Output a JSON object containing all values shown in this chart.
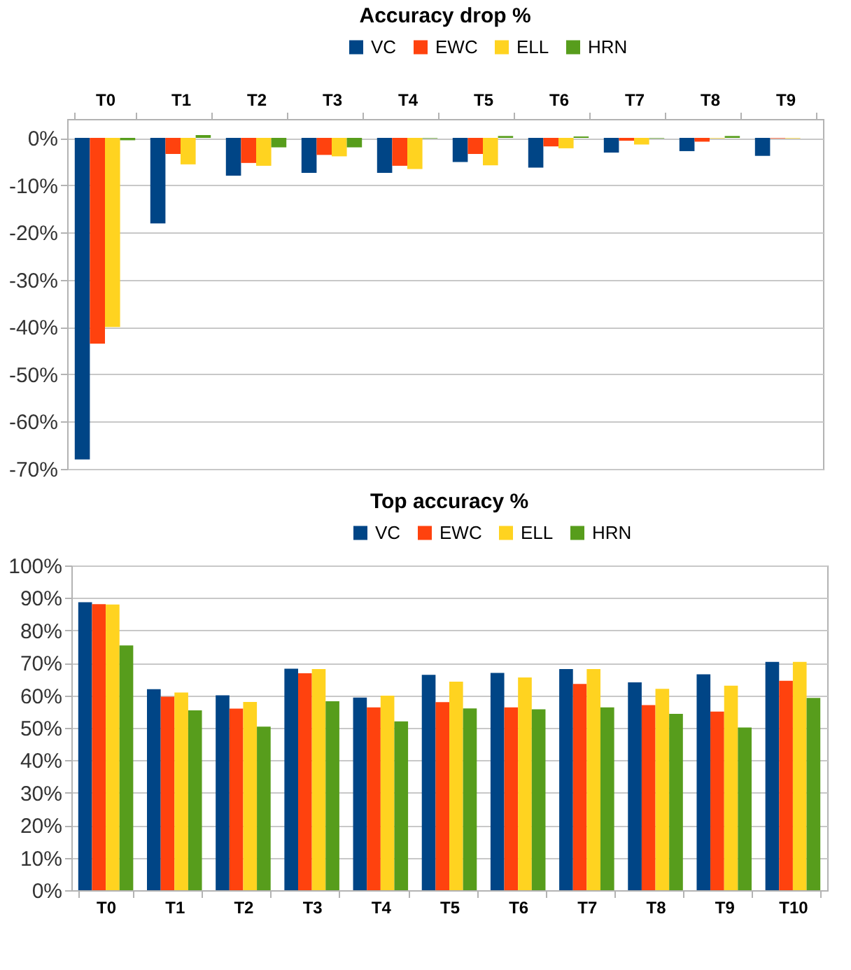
{
  "chart_data": [
    {
      "type": "bar",
      "title": "Accuracy drop %",
      "categories": [
        "T0",
        "T1",
        "T2",
        "T3",
        "T4",
        "T5",
        "T6",
        "T7",
        "T8",
        "T9"
      ],
      "series": [
        {
          "name": "VC",
          "color": "#004586",
          "values": [
            -68,
            -18.1,
            -8.0,
            -7.4,
            -7.4,
            -5.1,
            -6.3,
            -3.1,
            -2.8,
            -3.8
          ]
        },
        {
          "name": "EWC",
          "color": "#ff420e",
          "values": [
            -43.5,
            -3.4,
            -5.3,
            -3.6,
            -5.9,
            -3.4,
            -1.8,
            -0.6,
            -0.8,
            -0.1
          ]
        },
        {
          "name": "ELL",
          "color": "#ffd320",
          "values": [
            -40,
            -5.6,
            -5.9,
            -3.9,
            -6.6,
            -5.8,
            -2.2,
            -1.4,
            -0.1,
            -0.1
          ]
        },
        {
          "name": "HRN",
          "color": "#579d1c",
          "values": [
            -0.5,
            0.6,
            -2.0,
            -2.0,
            -0.1,
            0.4,
            0.3,
            -0.1,
            0.4,
            0
          ]
        }
      ],
      "ylim": [
        -70,
        4
      ],
      "yticks": [
        {
          "value": 0,
          "label": "0%"
        },
        {
          "value": -10,
          "label": "-10%"
        },
        {
          "value": -20,
          "label": "-20%"
        },
        {
          "value": -30,
          "label": "-30%"
        },
        {
          "value": -40,
          "label": "-40%"
        },
        {
          "value": -50,
          "label": "-50%"
        },
        {
          "value": -60,
          "label": "-60%"
        },
        {
          "value": -70,
          "label": "-70%"
        }
      ],
      "grid": "y",
      "legend": "top"
    },
    {
      "type": "bar",
      "title": "Top accuracy %",
      "categories": [
        "T0",
        "T1",
        "T2",
        "T3",
        "T4",
        "T5",
        "T6",
        "T7",
        "T8",
        "T9",
        "T10"
      ],
      "series": [
        {
          "name": "VC",
          "color": "#004586",
          "values": [
            88.7,
            61.9,
            60.0,
            68.2,
            59.3,
            66.3,
            66.9,
            68.1,
            64.0,
            66.5,
            70.3
          ]
        },
        {
          "name": "EWC",
          "color": "#ff420e",
          "values": [
            88.1,
            59.6,
            55.9,
            66.8,
            56.3,
            57.9,
            56.3,
            63.5,
            57.0,
            55.0,
            64.5
          ]
        },
        {
          "name": "ELL",
          "color": "#ffd320",
          "values": [
            88.0,
            60.9,
            58.0,
            68.1,
            59.9,
            64.2,
            65.5,
            68.1,
            62.0,
            63.0,
            70.3
          ]
        },
        {
          "name": "HRN",
          "color": "#579d1c",
          "values": [
            75.4,
            55.4,
            50.4,
            58.2,
            52.0,
            56.0,
            55.7,
            56.3,
            54.3,
            50.1,
            59.2
          ]
        }
      ],
      "ylim": [
        0,
        100
      ],
      "yticks": [
        {
          "value": 0,
          "label": "0%"
        },
        {
          "value": 10,
          "label": "10%"
        },
        {
          "value": 20,
          "label": "20%"
        },
        {
          "value": 30,
          "label": "30%"
        },
        {
          "value": 40,
          "label": "40%"
        },
        {
          "value": 50,
          "label": "50%"
        },
        {
          "value": 60,
          "label": "60%"
        },
        {
          "value": 70,
          "label": "70%"
        },
        {
          "value": 80,
          "label": "80%"
        },
        {
          "value": 90,
          "label": "90%"
        },
        {
          "value": 100,
          "label": "100%"
        }
      ],
      "grid": "y",
      "legend": "top"
    }
  ]
}
